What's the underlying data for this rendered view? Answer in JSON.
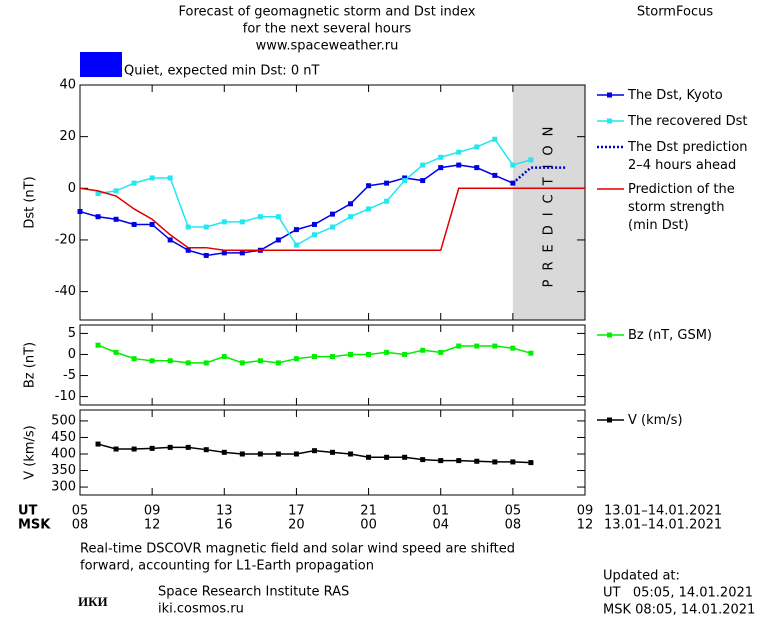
{
  "header": {
    "title_lines": [
      "Forecast of geomagnetic storm and Dst index",
      "for the next several hours",
      "www.spaceweather.ru"
    ],
    "brand": "StormFocus"
  },
  "status": {
    "label": "Quiet, expected min Dst: 0 nT",
    "color": "#0000ff"
  },
  "chart_data": [
    {
      "type": "line",
      "y_label": "Dst (nT)",
      "xlim": [
        0,
        28
      ],
      "ylim": [
        -51,
        40
      ],
      "yticks": [
        -40,
        -20,
        0,
        20,
        40
      ],
      "shade": [
        24,
        28
      ],
      "shade_color": "#d9d9d9",
      "shade_label": "PREDICTION",
      "x": [
        0,
        1,
        2,
        3,
        4,
        5,
        6,
        7,
        8,
        9,
        10,
        11,
        12,
        13,
        14,
        15,
        16,
        17,
        18,
        19,
        20,
        21,
        22,
        23,
        24,
        25,
        26,
        27,
        28
      ],
      "series": [
        {
          "name": "The Dst, Kyoto",
          "color": "#0000e6",
          "marker": "square",
          "values": [
            -9,
            -11,
            -12,
            -14,
            -14,
            -20,
            -24,
            -26,
            -25,
            -25,
            -24,
            -20,
            -16,
            -14,
            -10,
            -6,
            1,
            2,
            4,
            3,
            8,
            9,
            8,
            5,
            2,
            null,
            null,
            null,
            null
          ]
        },
        {
          "name": "The recovered Dst",
          "color": "#22e6f0",
          "marker": "square",
          "values": [
            null,
            -2,
            -1,
            2,
            4,
            4,
            -15,
            -15,
            -13,
            -13,
            -11,
            -11,
            -22,
            -18,
            -15,
            -11,
            -8,
            -5,
            3,
            9,
            12,
            14,
            16,
            19,
            9,
            11,
            null,
            null,
            null
          ]
        },
        {
          "name": "The Dst prediction\n2–4 hours ahead",
          "color": "#0000cc",
          "dash": "dotted",
          "values": [
            null,
            null,
            null,
            null,
            null,
            null,
            null,
            null,
            null,
            null,
            null,
            null,
            null,
            null,
            null,
            null,
            null,
            null,
            null,
            null,
            null,
            null,
            null,
            null,
            2,
            8,
            8,
            8,
            null
          ]
        },
        {
          "name": "Prediction of the\nstorm strength\n(min Dst)",
          "color": "#e00000",
          "values": [
            0,
            -1,
            -3,
            -8,
            -12,
            -18,
            -23,
            -23,
            -24,
            -24,
            -24,
            -24,
            -24,
            -24,
            -24,
            -24,
            -24,
            -24,
            -24,
            -24,
            -24,
            0,
            0,
            0,
            0,
            0,
            0,
            0,
            0
          ]
        }
      ]
    },
    {
      "type": "line",
      "y_label": "Bz (nT)",
      "xlim": [
        0,
        28
      ],
      "ylim": [
        -12,
        7
      ],
      "yticks": [
        -10,
        -5,
        0,
        5
      ],
      "x": [
        1,
        2,
        3,
        4,
        5,
        6,
        7,
        8,
        9,
        10,
        11,
        12,
        13,
        14,
        15,
        16,
        17,
        18,
        19,
        20,
        21,
        22,
        23,
        24,
        25
      ],
      "series": [
        {
          "name": "Bz (nT, GSM)",
          "color": "#00ee00",
          "marker": "square",
          "values": [
            2.2,
            0.5,
            -1,
            -1.5,
            -1.5,
            -2,
            -2,
            -0.5,
            -2,
            -1.5,
            -2,
            -1,
            -0.5,
            -0.5,
            0,
            0,
            0.5,
            0,
            1,
            0.5,
            2,
            2,
            2,
            1.5,
            0.3
          ]
        }
      ]
    },
    {
      "type": "line",
      "y_label": "V (km/s)",
      "xlim": [
        0,
        28
      ],
      "ylim": [
        276,
        533
      ],
      "yticks": [
        300,
        350,
        400,
        450,
        500
      ],
      "x": [
        1,
        2,
        3,
        4,
        5,
        6,
        7,
        8,
        9,
        10,
        11,
        12,
        13,
        14,
        15,
        16,
        17,
        18,
        19,
        20,
        21,
        22,
        23,
        24,
        25
      ],
      "series": [
        {
          "name": "V (km/s)",
          "color": "#000000",
          "marker": "square",
          "values": [
            430,
            415,
            415,
            417,
            420,
            420,
            413,
            405,
            400,
            400,
            400,
            400,
            410,
            405,
            400,
            390,
            390,
            390,
            383,
            380,
            380,
            378,
            376,
            376,
            374
          ]
        }
      ],
      "x_axis_rows": [
        {
          "label": "UT",
          "range": "13.01–14.01.2021",
          "ticks": [
            {
              "value": 0,
              "label": "05"
            },
            {
              "value": 4,
              "label": "09"
            },
            {
              "value": 8,
              "label": "13"
            },
            {
              "value": 12,
              "label": "17"
            },
            {
              "value": 16,
              "label": "21"
            },
            {
              "value": 20,
              "label": "01"
            },
            {
              "value": 24,
              "label": "05"
            },
            {
              "value": 28,
              "label": "09"
            }
          ]
        },
        {
          "label": "MSK",
          "range": "13.01–14.01.2021",
          "ticks": [
            {
              "value": 0,
              "label": "08"
            },
            {
              "value": 4,
              "label": "12"
            },
            {
              "value": 8,
              "label": "16"
            },
            {
              "value": 12,
              "label": "20"
            },
            {
              "value": 16,
              "label": "00"
            },
            {
              "value": 20,
              "label": "04"
            },
            {
              "value": 24,
              "label": "08"
            },
            {
              "value": 28,
              "label": "12"
            }
          ]
        }
      ]
    }
  ],
  "footer": {
    "note_lines": [
      "Real-time DSCOVR magnetic field and solar wind speed are shifted",
      "forward, accounting for L1-Earth propagation"
    ],
    "logo": "ИКИ",
    "institute": "Space Research Institute RAS",
    "site": "iki.cosmos.ru",
    "updated_lines": [
      "Updated at:",
      "UT   05:05, 14.01.2021",
      "MSK 08:05, 14.01.2021"
    ]
  }
}
